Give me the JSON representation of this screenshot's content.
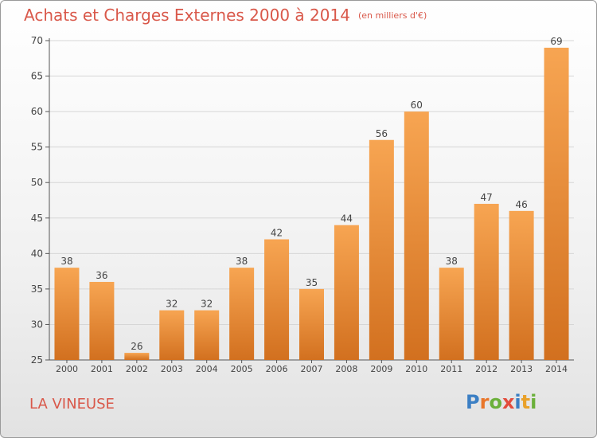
{
  "title": "Achats et Charges Externes 2000 à 2014",
  "unit": "(en milliers d'€)",
  "city": "LA VINEUSE",
  "logo": {
    "text": "Proxiti",
    "letters": [
      {
        "ch": "P",
        "color": "#3b7fc4"
      },
      {
        "ch": "r",
        "color": "#e9762a"
      },
      {
        "ch": "o",
        "color": "#6bb03a"
      },
      {
        "ch": "x",
        "color": "#e34c3c"
      },
      {
        "ch": "i",
        "color": "#3b7fc4"
      },
      {
        "ch": "t",
        "color": "#e9a12a"
      },
      {
        "ch": "i",
        "color": "#6bb03a"
      }
    ]
  },
  "colors": {
    "bar_top": "#f7a552",
    "bar_bottom": "#d2701f",
    "title": "#d9584a"
  },
  "chart_data": {
    "type": "bar",
    "categories": [
      "2000",
      "2001",
      "2002",
      "2003",
      "2004",
      "2005",
      "2006",
      "2007",
      "2008",
      "2009",
      "2010",
      "2011",
      "2012",
      "2013",
      "2014"
    ],
    "values": [
      38,
      36,
      26,
      32,
      32,
      38,
      42,
      35,
      44,
      56,
      60,
      38,
      47,
      46,
      69
    ],
    "ylim": [
      25,
      70
    ],
    "yticks": [
      25,
      30,
      35,
      40,
      45,
      50,
      55,
      60,
      65,
      70
    ],
    "grid": true
  }
}
